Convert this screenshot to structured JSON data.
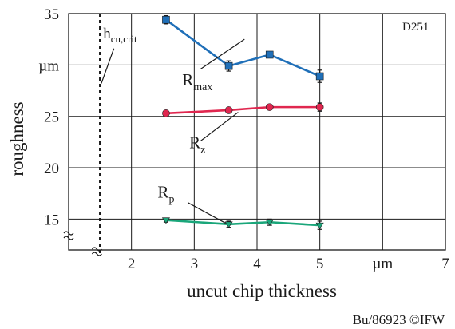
{
  "chart_data": {
    "type": "line",
    "code": "D251",
    "xlabel": "uncut chip thickness",
    "ylabel": "roughness",
    "x_unit": "µm",
    "y_unit": "µm",
    "credit": "Bu/86923 ©IFW",
    "xlim": [
      1,
      7
    ],
    "ylim": [
      12,
      35
    ],
    "x_ticks": [
      {
        "value": 2,
        "label": "2"
      },
      {
        "value": 3,
        "label": "3"
      },
      {
        "value": 4,
        "label": "4"
      },
      {
        "value": 5,
        "label": "5"
      },
      {
        "value": 6,
        "label": "µm"
      },
      {
        "value": 7,
        "label": "7"
      }
    ],
    "y_ticks": [
      {
        "value": 15,
        "label": "15"
      },
      {
        "value": 20,
        "label": "20"
      },
      {
        "value": 25,
        "label": "25"
      },
      {
        "value": 30,
        "label": "µm"
      },
      {
        "value": 35,
        "label": "35"
      }
    ],
    "grid": true,
    "critical_line": {
      "x": 1.5,
      "label_main": "h",
      "label_sub": "cu,crit"
    },
    "series": [
      {
        "name": "R",
        "sub": "max",
        "color": "#1f6fb8",
        "marker": "square",
        "x": [
          2.55,
          3.55,
          4.2,
          5.0
        ],
        "y": [
          34.4,
          29.9,
          31.0,
          28.9
        ],
        "err": [
          0.4,
          0.5,
          0.3,
          0.6
        ]
      },
      {
        "name": "R",
        "sub": "z",
        "color": "#e0274f",
        "marker": "circle",
        "x": [
          2.55,
          3.55,
          4.2,
          5.0
        ],
        "y": [
          25.3,
          25.6,
          25.9,
          25.9
        ],
        "err": [
          0.2,
          0.2,
          0.2,
          0.4
        ]
      },
      {
        "name": "R",
        "sub": "p",
        "color": "#1aa67a",
        "marker": "triangle",
        "x": [
          2.55,
          3.55,
          4.2,
          5.0
        ],
        "y": [
          14.9,
          14.5,
          14.7,
          14.4
        ],
        "err": [
          0.2,
          0.3,
          0.3,
          0.4
        ]
      }
    ]
  }
}
